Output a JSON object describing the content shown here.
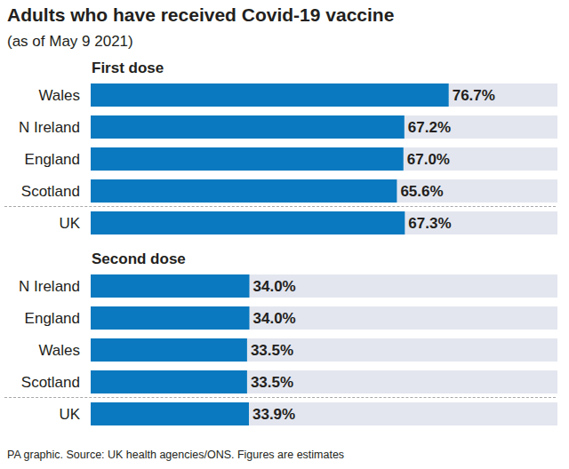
{
  "title": "Adults who have received Covid-19 vaccine",
  "subtitle": "(as of May 9 2021)",
  "note": "PA graphic. Source: UK health agencies/ONS. Figures are estimates",
  "chart_data": [
    {
      "type": "bar",
      "title": "First dose",
      "orientation": "horizontal",
      "categories": [
        "Wales",
        "N Ireland",
        "England",
        "Scotland",
        "UK"
      ],
      "values": [
        76.7,
        67.2,
        67.0,
        65.6,
        67.3
      ],
      "value_labels": [
        "76.7%",
        "67.2%",
        "67.0%",
        "65.6%",
        "67.3%"
      ],
      "data_labels": true,
      "color": "#0a79bf",
      "xlim": [
        0,
        100
      ],
      "tick_labels": "y",
      "grid": false
    },
    {
      "type": "bar",
      "title": "Second dose",
      "orientation": "horizontal",
      "categories": [
        "N Ireland",
        "England",
        "Wales",
        "Scotland",
        "UK"
      ],
      "values": [
        34.0,
        34.0,
        33.5,
        33.5,
        33.9
      ],
      "value_labels": [
        "34.0%",
        "34.0%",
        "33.5%",
        "33.5%",
        "33.9%"
      ],
      "data_labels": true,
      "color": "#0a79bf",
      "xlim": [
        0,
        100
      ],
      "tick_labels": "y",
      "grid": false
    }
  ]
}
